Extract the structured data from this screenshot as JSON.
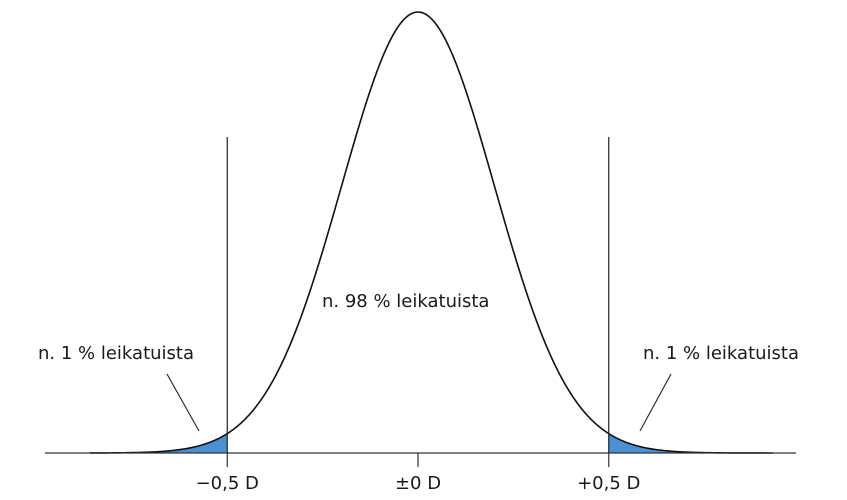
{
  "chart_data": {
    "type": "area",
    "title": "",
    "xlabel": "",
    "ylabel": "",
    "distribution": "normal",
    "xlim": [
      -1.0,
      1.0
    ],
    "x_ticks": [
      {
        "value": -0.5,
        "label": "−0,5 D"
      },
      {
        "value": 0,
        "label": "±0 D"
      },
      {
        "value": 0.5,
        "label": "+0,5 D"
      }
    ],
    "shaded_regions": [
      {
        "range": [
          -1.0,
          -0.5
        ],
        "share_percent": 1,
        "color": "#4a90d2"
      },
      {
        "range": [
          0.5,
          1.0
        ],
        "share_percent": 1,
        "color": "#4a90d2"
      }
    ],
    "annotations": [
      {
        "region": "left",
        "text": "n. 1 % leikatuista"
      },
      {
        "region": "center",
        "text": "n. 98 % leikatuista"
      },
      {
        "region": "right",
        "text": "n. 1 % leikatuista"
      }
    ],
    "grid": false,
    "legend": "none"
  }
}
